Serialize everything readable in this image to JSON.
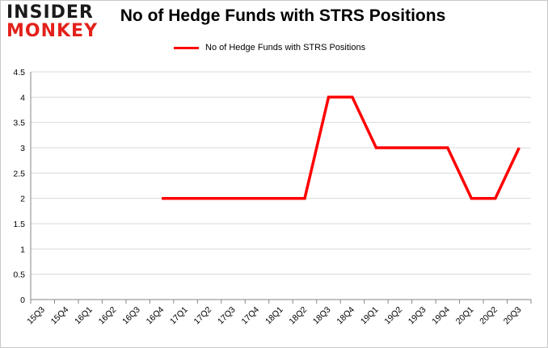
{
  "logo": {
    "line1": "INSIDER",
    "line2": "MONKEY"
  },
  "chart_data": {
    "type": "line",
    "title": "No of Hedge Funds with STRS Positions",
    "xlabel": "",
    "ylabel": "",
    "categories": [
      "15Q3",
      "15Q4",
      "16Q1",
      "16Q2",
      "16Q3",
      "16Q4",
      "17Q1",
      "17Q2",
      "17Q3",
      "17Q4",
      "18Q1",
      "18Q2",
      "18Q3",
      "18Q4",
      "19Q1",
      "19Q2",
      "19Q3",
      "19Q4",
      "20Q1",
      "20Q2",
      "20Q3"
    ],
    "series": [
      {
        "name": "No of Hedge Funds with STRS Positions",
        "color": "#ff0000",
        "values": [
          null,
          null,
          null,
          null,
          null,
          2,
          2,
          2,
          2,
          2,
          2,
          2,
          4,
          4,
          3,
          3,
          3,
          3,
          2,
          2,
          3
        ]
      }
    ],
    "ylim": [
      0,
      4.5
    ],
    "yticks": [
      "0",
      "0.5",
      "1",
      "1.5",
      "2",
      "2.5",
      "3",
      "3.5",
      "4",
      "4.5"
    ],
    "grid": true,
    "legend_position": "top"
  }
}
